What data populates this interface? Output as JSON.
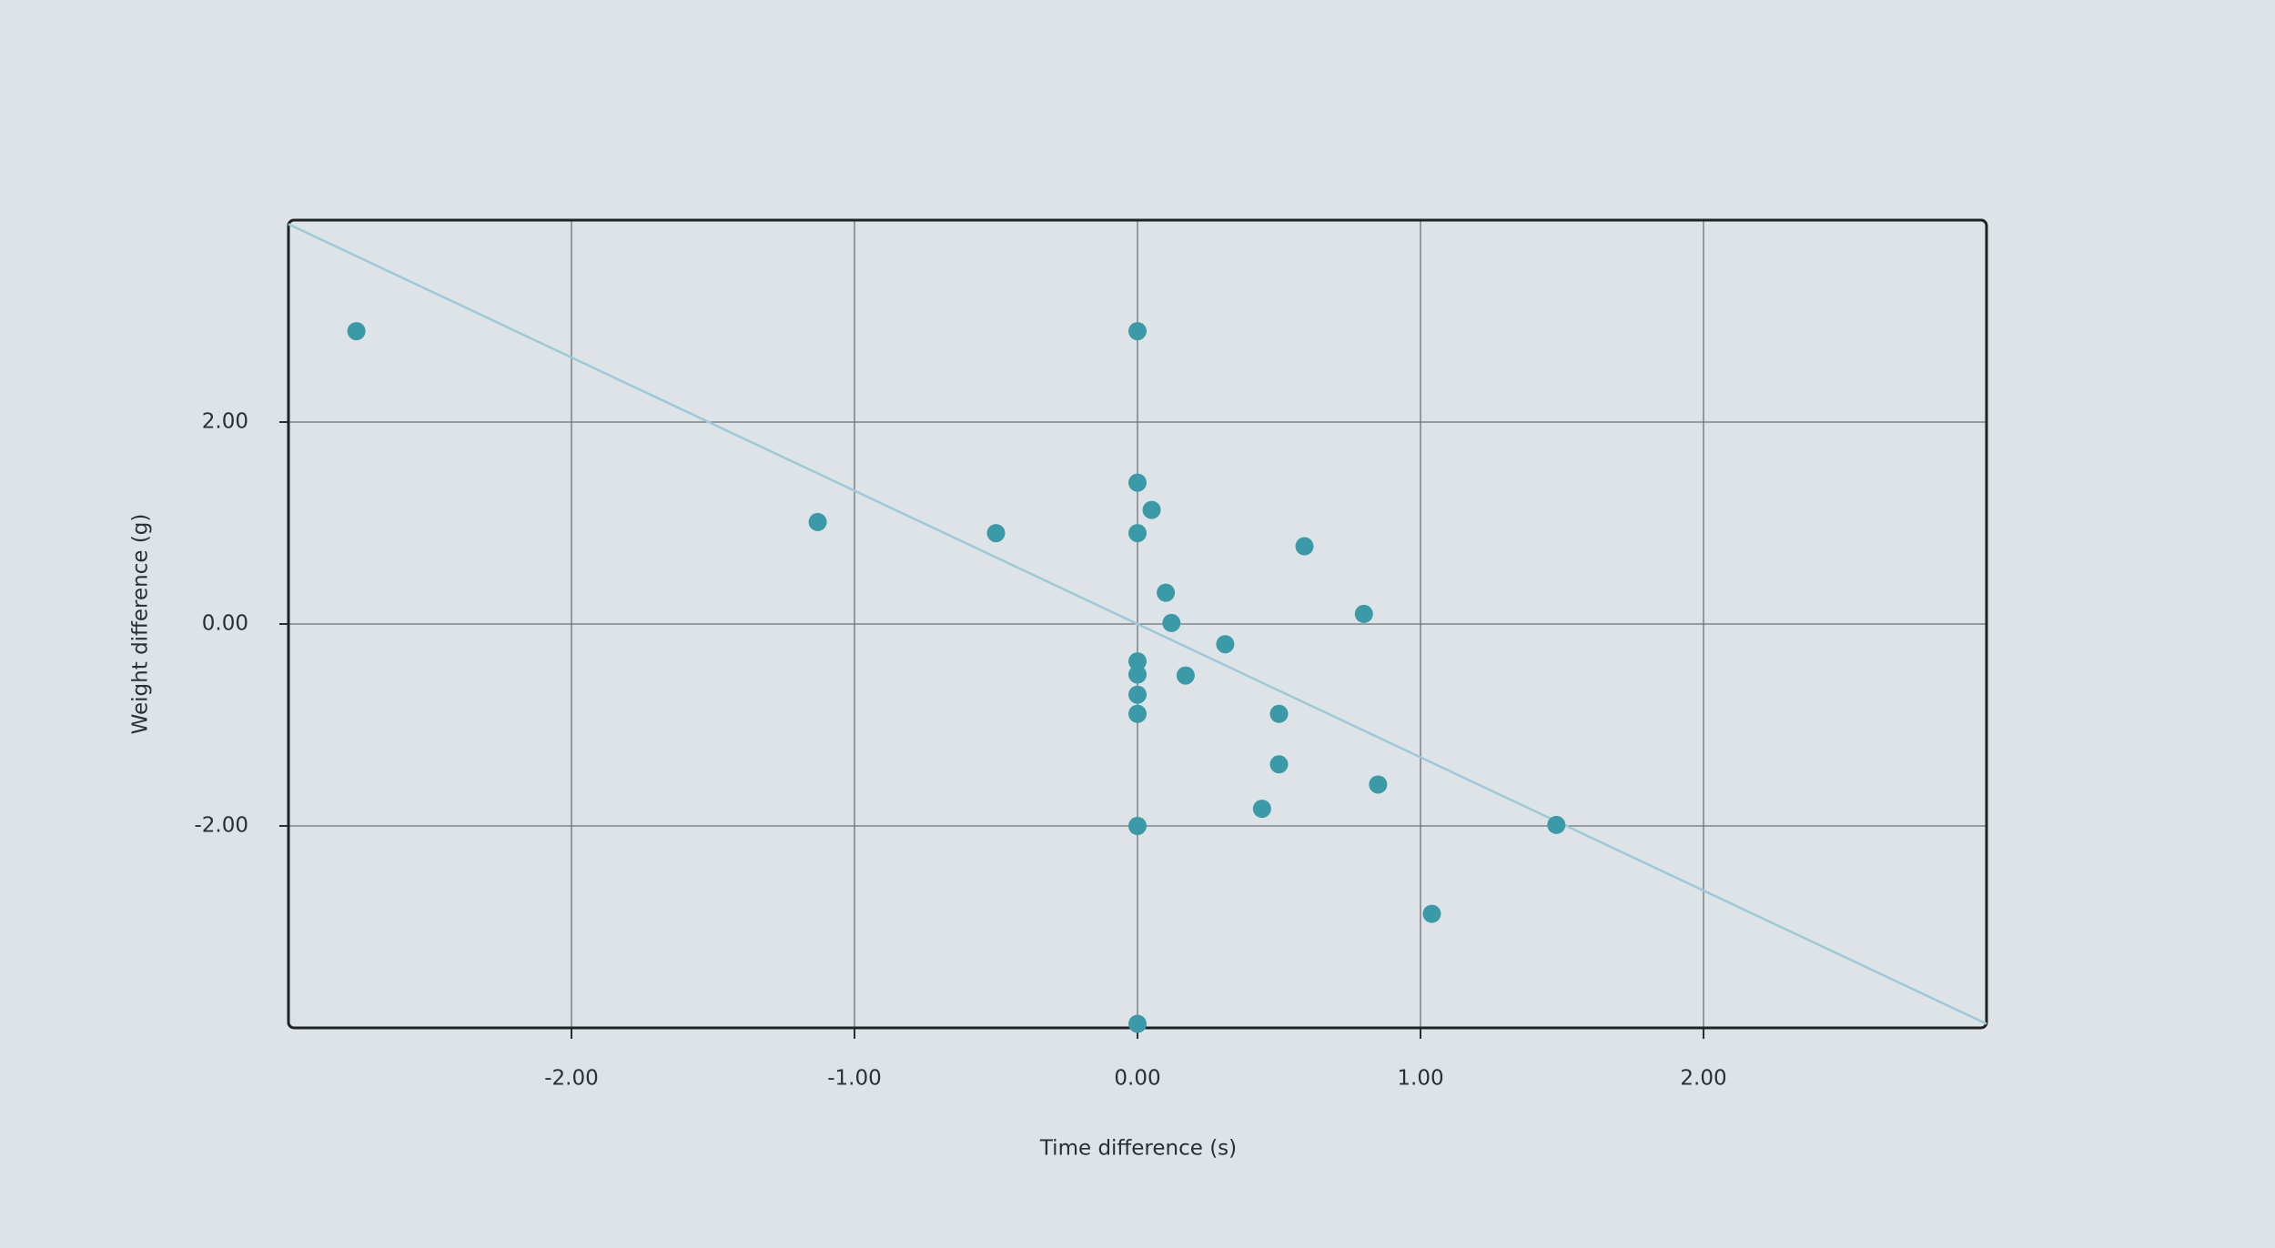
{
  "chart_data": {
    "type": "scatter",
    "x_label": "Time difference (s)",
    "y_label": "Weight difference (g)",
    "series": [
      {
        "color": "#3a9aa8",
        "x": [
          -2.76,
          0,
          -1.13,
          -0.5,
          0,
          0.05,
          0,
          0.59,
          0.1,
          0.8,
          0.12,
          0.31,
          0,
          0,
          0.17,
          0,
          0,
          0.5,
          0.5,
          0.85,
          0.44,
          0,
          1.48,
          1.04,
          0
        ],
        "values": [
          2.9,
          2.9,
          1.01,
          0.9,
          1.4,
          1.13,
          0.9,
          0.77,
          0.31,
          0.1,
          0.01,
          -0.2,
          -0.37,
          -0.5,
          -0.51,
          -0.7,
          -0.89,
          -0.89,
          -1.39,
          -1.59,
          -1.83,
          -2.0,
          -1.99,
          -2.87,
          -3.96
        ]
      }
    ],
    "trendline": {
      "color": "#9ccad6",
      "x": [
        -3,
        3
      ],
      "values": [
        3.96,
        -3.96
      ]
    },
    "xlim": [
      -3,
      3
    ],
    "ylim": [
      -4,
      4
    ],
    "xticks": [
      {
        "value": -2,
        "label": "-2.00"
      },
      {
        "value": -1,
        "label": "-1.00"
      },
      {
        "value": 0,
        "label": "0.00"
      },
      {
        "value": 1,
        "label": "1.00"
      },
      {
        "value": 2,
        "label": "2.00"
      }
    ],
    "yticks": [
      {
        "value": -2,
        "label": "-2.00"
      },
      {
        "value": 0,
        "label": "0.00"
      },
      {
        "value": 2,
        "label": "2.00"
      }
    ],
    "grid": true
  }
}
